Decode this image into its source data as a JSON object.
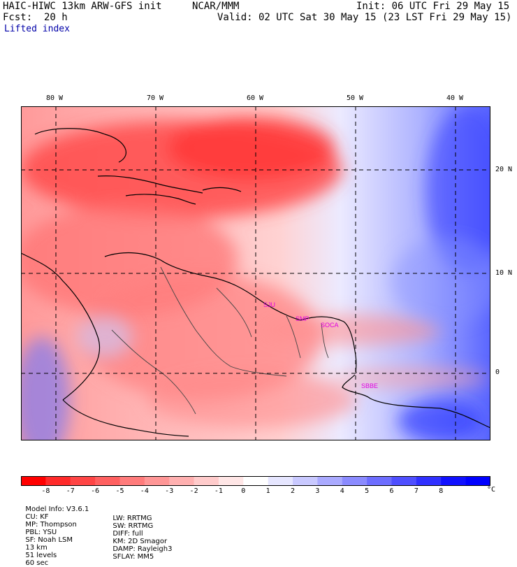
{
  "header": {
    "title": "HAIC-HIWC 13km ARW-GFS init",
    "org": "NCAR/MMM",
    "init": "Init: 06 UTC Fri 29 May 15",
    "fcst": "Fcst:  20 h",
    "valid": "Valid: 02 UTC Sat 30 May 15 (23 LST Fri 29 May 15)",
    "field": "Lifted index"
  },
  "map": {
    "lon_labels": [
      "80 W",
      "70 W",
      "60 W",
      "50 W",
      "40 W"
    ],
    "lat_labels": [
      "20 N",
      "10 N",
      "0"
    ],
    "stations": [
      "SJU",
      "SMP",
      "SOCA",
      "SBBE"
    ],
    "negative_color": "#ff2020",
    "positive_color": "#2030e0"
  },
  "colorbar": {
    "labels": [
      "-8",
      "-7",
      "-6",
      "-5",
      "-4",
      "-3",
      "-2",
      "-1",
      "0",
      "1",
      "2",
      "3",
      "4",
      "5",
      "6",
      "7",
      "8"
    ],
    "unit": "°C",
    "colors": [
      "#ff0000",
      "#ff2a2a",
      "#ff4545",
      "#ff6060",
      "#ff7b7b",
      "#ff9696",
      "#ffb0b0",
      "#ffcbcb",
      "#ffe6e6",
      "#ffffff",
      "#e6e6ff",
      "#c9c9ff",
      "#aaaaff",
      "#8b8bff",
      "#6d6dff",
      "#4f4fff",
      "#3030ff",
      "#1010ff",
      "#0000ff"
    ]
  },
  "footer": {
    "line1": [
      "Model Info: V3.6.1",
      "CU: KF",
      "MP: Thompson",
      "PBL: YSU",
      "SF: Noah LSM",
      "13 km",
      "51 levels",
      "60 sec"
    ],
    "line2": [
      "LW: RRTMG",
      "SW: RRTMG",
      "DIFF: full",
      "KM: 2D Smagor",
      "DAMP: Rayleigh3",
      "SFLAY: MM5"
    ]
  }
}
